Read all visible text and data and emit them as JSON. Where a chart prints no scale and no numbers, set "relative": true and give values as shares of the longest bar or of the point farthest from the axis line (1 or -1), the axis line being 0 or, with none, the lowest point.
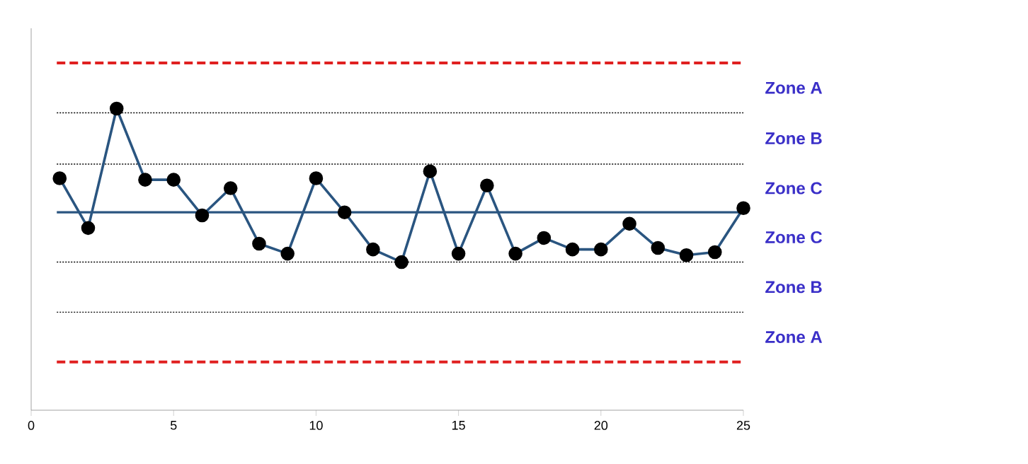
{
  "chart_data": {
    "type": "line",
    "relative": true,
    "x": [
      1,
      2,
      3,
      4,
      5,
      6,
      7,
      8,
      9,
      10,
      11,
      12,
      13,
      14,
      15,
      16,
      17,
      18,
      19,
      20,
      21,
      22,
      23,
      24,
      25
    ],
    "xlim": [
      0,
      25
    ],
    "xticks": [
      0,
      5,
      10,
      15,
      20,
      25
    ],
    "marker": "circle",
    "line_style": "solid",
    "series": [
      {
        "color": "#2a5580",
        "values": [
          0.769,
          0.604,
          1,
          0.764,
          0.764,
          0.646,
          0.736,
          0.552,
          0.519,
          0.769,
          0.656,
          0.533,
          0.491,
          0.792,
          0.519,
          0.745,
          0.519,
          0.571,
          0.533,
          0.533,
          0.618,
          0.538,
          0.514,
          0.524,
          0.67
        ]
      }
    ],
    "ref_lines": [
      {
        "axis": "y",
        "value": 1.151,
        "color": "#e02020",
        "line_style": "dashed"
      },
      {
        "axis": "y",
        "value": 0.986,
        "color": "#000000",
        "line_style": "dotted"
      },
      {
        "axis": "y",
        "value": 0.816,
        "color": "#000000",
        "line_style": "dotted"
      },
      {
        "axis": "y",
        "value": 0.656,
        "color": "#2a5580",
        "line_style": "solid"
      },
      {
        "axis": "y",
        "value": 0.491,
        "color": "#000000",
        "line_style": "dotted"
      },
      {
        "axis": "y",
        "value": 0.325,
        "color": "#000000",
        "line_style": "dotted"
      },
      {
        "axis": "y",
        "value": 0.16,
        "color": "#e02020",
        "line_style": "dashed"
      }
    ],
    "annotations": [
      "Zone A",
      "Zone B",
      "Zone C",
      "Zone C",
      "Zone B",
      "Zone A"
    ]
  }
}
